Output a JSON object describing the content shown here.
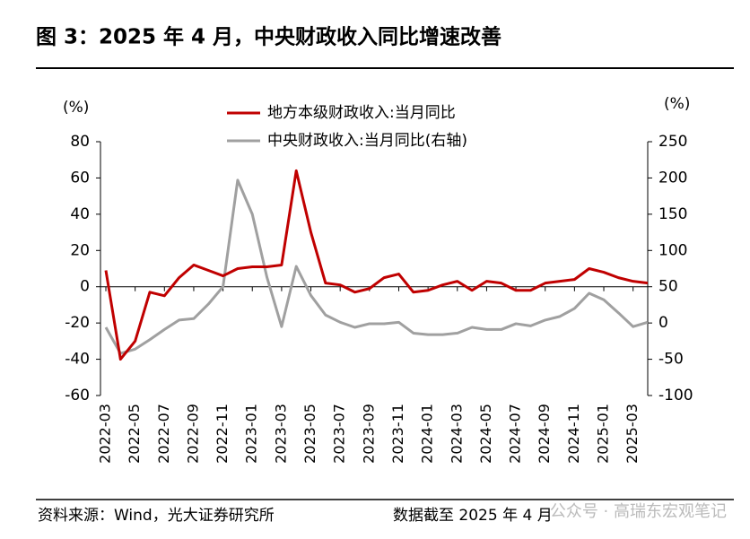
{
  "chart_data": {
    "type": "line",
    "title": "图 3：2025 年 4 月，中央财政收入同比增速改善",
    "y_unit": "(%)",
    "y2_unit": "(%)",
    "categories": [
      "2022-03",
      null,
      "2022-05",
      null,
      "2022-07",
      null,
      "2022-09",
      null,
      "2022-11",
      null,
      "2023-01",
      null,
      "2023-03",
      null,
      "2023-05",
      null,
      "2023-07",
      null,
      "2023-09",
      null,
      "2023-11",
      null,
      "2024-01",
      null,
      "2024-03",
      null,
      "2024-05",
      null,
      "2024-07",
      null,
      "2024-09",
      null,
      "2024-11",
      null,
      "2025-01",
      null,
      "2025-03",
      null
    ],
    "series": [
      {
        "name": "地方本级财政收入:当月同比",
        "color": "#c00000",
        "axis": "y",
        "values": [
          9,
          -40,
          -30,
          -3,
          -5,
          5,
          12,
          9,
          6,
          10,
          11,
          11,
          12,
          64,
          30,
          2,
          1,
          -3,
          -1,
          5,
          7,
          -3,
          -2,
          1,
          3,
          -2,
          3,
          2,
          -2,
          -2,
          2,
          3,
          4,
          10,
          8,
          5,
          3,
          2
        ]
      },
      {
        "name": "中央财政收入:当月同比(右轴)",
        "color": "#a0a0a0",
        "axis": "y2",
        "values": [
          -6,
          -42,
          -36,
          -23,
          -9,
          4,
          6,
          26,
          50,
          197,
          150,
          63,
          -5,
          78,
          38,
          11,
          1,
          -6,
          -1,
          -1,
          1,
          -14,
          -16,
          -16,
          -14,
          -6,
          -9,
          -9,
          -1,
          -4,
          4,
          9,
          20,
          41,
          32,
          14,
          -5,
          1
        ]
      }
    ],
    "ylim": [
      -60,
      80
    ],
    "yticks": [
      -60,
      -40,
      -20,
      0,
      20,
      40,
      60,
      80
    ],
    "y2lim": [
      -100,
      250
    ],
    "y2ticks": [
      -100,
      -50,
      0,
      50,
      100,
      150,
      200,
      250
    ],
    "source": "资料来源：Wind，光大证券研究所",
    "note": "数据截至 2025 年 4 月",
    "watermark": "公众号 · 高瑞东宏观笔记"
  }
}
